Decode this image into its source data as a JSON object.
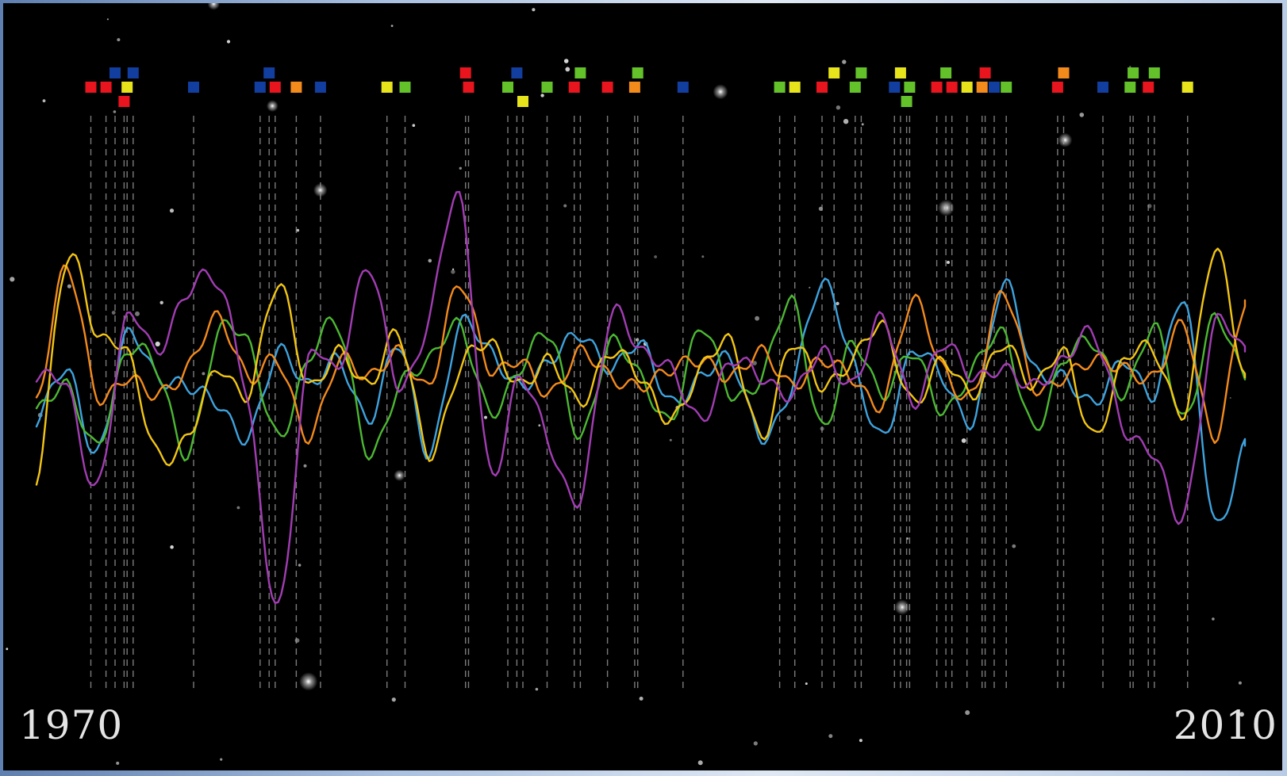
{
  "chart_data": {
    "type": "line",
    "x_start_label": "1970",
    "x_end_label": "2010",
    "xlim": [
      1970,
      2010
    ],
    "ylim": [
      -1,
      1
    ],
    "grid": false,
    "legend": "none",
    "background": "#000000",
    "series": [
      {
        "color": "#3ea3de",
        "x": [
          1970.0,
          1971.0,
          1972.0,
          1973.0,
          1974.0,
          1975.0,
          1976.0,
          1977.0,
          1978.0,
          1979.0,
          1980.0,
          1981.0,
          1982.0,
          1983.0,
          1984.0,
          1985.0,
          1986.0,
          1987.0,
          1988.0,
          1989.0,
          1990.0,
          1991.0,
          1992.0,
          1993.0,
          1994.0,
          1995.0,
          1996.0,
          1997.0,
          1998.0,
          1999.0,
          2000.0,
          2001.0,
          2002.0,
          2003.0,
          2004.0,
          2005.0,
          2006.0,
          2007.0,
          2008.0,
          2009.0,
          2010.0
        ],
        "y": [
          -0.25,
          0.05,
          -0.45,
          0.25,
          0.0,
          -0.05,
          -0.15,
          -0.35,
          0.15,
          -0.05,
          0.1,
          -0.25,
          0.2,
          -0.45,
          0.3,
          0.15,
          -0.05,
          0.1,
          0.25,
          0.05,
          0.2,
          -0.15,
          0.0,
          0.1,
          -0.35,
          -0.05,
          0.55,
          0.1,
          -0.35,
          0.15,
          0.0,
          -0.25,
          0.55,
          0.05,
          0.0,
          -0.15,
          0.1,
          -0.1,
          0.45,
          -0.85,
          -0.4
        ]
      },
      {
        "color": "#4cb832",
        "x": [
          1970.0,
          1971.0,
          1972.0,
          1973.0,
          1974.0,
          1975.0,
          1976.0,
          1977.0,
          1978.0,
          1979.0,
          1980.0,
          1981.0,
          1982.0,
          1983.0,
          1984.0,
          1985.0,
          1986.0,
          1987.0,
          1988.0,
          1989.0,
          1990.0,
          1991.0,
          1992.0,
          1993.0,
          1994.0,
          1995.0,
          1996.0,
          1997.0,
          1998.0,
          1999.0,
          2000.0,
          2001.0,
          2002.0,
          2003.0,
          2004.0,
          2005.0,
          2006.0,
          2007.0,
          2008.0,
          2009.0,
          2010.0
        ],
        "y": [
          -0.2,
          -0.05,
          -0.4,
          0.15,
          0.05,
          -0.45,
          0.25,
          0.2,
          -0.35,
          0.1,
          0.3,
          -0.45,
          -0.05,
          0.1,
          0.3,
          -0.2,
          0.05,
          0.25,
          -0.35,
          0.2,
          0.0,
          -0.25,
          0.3,
          -0.1,
          0.0,
          0.45,
          -0.3,
          0.2,
          -0.1,
          0.15,
          -0.2,
          0.05,
          0.25,
          -0.3,
          0.1,
          0.2,
          -0.1,
          0.3,
          -0.25,
          0.35,
          0.0
        ]
      },
      {
        "color": "#f38a1c",
        "x": [
          1970.0,
          1971.0,
          1972.0,
          1973.0,
          1974.0,
          1975.0,
          1976.0,
          1977.0,
          1978.0,
          1979.0,
          1980.0,
          1981.0,
          1982.0,
          1983.0,
          1984.0,
          1985.0,
          1986.0,
          1987.0,
          1988.0,
          1989.0,
          1990.0,
          1991.0,
          1992.0,
          1993.0,
          1994.0,
          1995.0,
          1996.0,
          1997.0,
          1998.0,
          1999.0,
          2000.0,
          2001.0,
          2002.0,
          2003.0,
          2004.0,
          2005.0,
          2006.0,
          2007.0,
          2008.0,
          2009.0,
          2010.0
        ],
        "y": [
          -0.15,
          0.65,
          -0.1,
          0.0,
          -0.1,
          0.05,
          0.35,
          0.0,
          0.1,
          -0.35,
          0.1,
          0.0,
          0.15,
          -0.05,
          0.55,
          0.05,
          0.1,
          -0.1,
          0.15,
          0.0,
          -0.05,
          0.05,
          0.1,
          0.0,
          0.15,
          -0.05,
          0.1,
          0.0,
          -0.15,
          0.45,
          0.05,
          -0.1,
          0.5,
          -0.05,
          0.0,
          0.1,
          0.05,
          0.0,
          0.3,
          -0.35,
          0.45
        ]
      },
      {
        "color": "#f2c515",
        "x": [
          1970.0,
          1971.0,
          1972.0,
          1973.0,
          1974.0,
          1975.0,
          1976.0,
          1977.0,
          1978.0,
          1979.0,
          1980.0,
          1981.0,
          1982.0,
          1983.0,
          1984.0,
          1985.0,
          1986.0,
          1987.0,
          1988.0,
          1989.0,
          1990.0,
          1991.0,
          1992.0,
          1993.0,
          1994.0,
          1995.0,
          1996.0,
          1997.0,
          1998.0,
          1999.0,
          2000.0,
          2001.0,
          2002.0,
          2003.0,
          2004.0,
          2005.0,
          2006.0,
          2007.0,
          2008.0,
          2009.0,
          2010.0
        ],
        "y": [
          -0.6,
          0.7,
          0.25,
          0.15,
          -0.45,
          -0.35,
          0.05,
          -0.1,
          0.55,
          -0.05,
          0.15,
          -0.05,
          0.25,
          -0.45,
          0.05,
          0.2,
          -0.05,
          0.1,
          -0.15,
          0.15,
          0.0,
          -0.25,
          0.05,
          0.2,
          -0.35,
          0.2,
          -0.05,
          0.1,
          0.3,
          -0.15,
          0.1,
          -0.1,
          0.2,
          -0.05,
          0.15,
          -0.35,
          0.1,
          0.15,
          -0.2,
          0.75,
          0.0
        ]
      },
      {
        "color": "#a23db3",
        "x": [
          1970.0,
          1971.0,
          1972.0,
          1973.0,
          1974.0,
          1975.0,
          1976.0,
          1977.0,
          1978.0,
          1979.0,
          1980.0,
          1981.0,
          1982.0,
          1983.0,
          1984.0,
          1985.0,
          1986.0,
          1987.0,
          1988.0,
          1989.0,
          1990.0,
          1991.0,
          1992.0,
          1993.0,
          1994.0,
          1995.0,
          1996.0,
          1997.0,
          1998.0,
          1999.0,
          2000.0,
          2001.0,
          2002.0,
          2003.0,
          2004.0,
          2005.0,
          2006.0,
          2007.0,
          2008.0,
          2009.0,
          2010.0
        ],
        "y": [
          0.0,
          -0.05,
          -0.65,
          0.35,
          0.15,
          0.5,
          0.55,
          -0.15,
          -1.35,
          0.1,
          0.05,
          0.65,
          -0.05,
          0.35,
          1.05,
          -0.55,
          0.0,
          -0.4,
          -0.7,
          0.35,
          0.15,
          0.05,
          -0.25,
          0.1,
          0.0,
          -0.1,
          0.15,
          -0.05,
          0.35,
          -0.15,
          0.2,
          0.0,
          0.05,
          -0.05,
          0.1,
          0.25,
          -0.3,
          -0.45,
          -0.8,
          0.3,
          0.15
        ]
      }
    ],
    "event_markers": [
      {
        "x": 1971.8,
        "row": 1,
        "color": "#e8141e"
      },
      {
        "x": 1972.3,
        "row": 1,
        "color": "#e8141e"
      },
      {
        "x": 1972.6,
        "row": 0,
        "color": "#123ea0"
      },
      {
        "x": 1972.9,
        "row": 2,
        "color": "#e8141e"
      },
      {
        "x": 1973.0,
        "row": 1,
        "color": "#e8e41c"
      },
      {
        "x": 1973.2,
        "row": 0,
        "color": "#123ea0"
      },
      {
        "x": 1975.2,
        "row": 1,
        "color": "#123ea0"
      },
      {
        "x": 1977.4,
        "row": 1,
        "color": "#123ea0"
      },
      {
        "x": 1977.7,
        "row": 0,
        "color": "#123ea0"
      },
      {
        "x": 1977.9,
        "row": 1,
        "color": "#e8141e"
      },
      {
        "x": 1978.6,
        "row": 1,
        "color": "#f38a1c"
      },
      {
        "x": 1979.4,
        "row": 1,
        "color": "#123ea0"
      },
      {
        "x": 1981.6,
        "row": 1,
        "color": "#e8e41c"
      },
      {
        "x": 1982.2,
        "row": 1,
        "color": "#63c22a"
      },
      {
        "x": 1984.2,
        "row": 0,
        "color": "#e8141e"
      },
      {
        "x": 1984.3,
        "row": 1,
        "color": "#e8141e"
      },
      {
        "x": 1985.6,
        "row": 1,
        "color": "#63c22a"
      },
      {
        "x": 1985.9,
        "row": 0,
        "color": "#123ea0"
      },
      {
        "x": 1986.1,
        "row": 2,
        "color": "#e8e41c"
      },
      {
        "x": 1986.9,
        "row": 1,
        "color": "#63c22a"
      },
      {
        "x": 1987.8,
        "row": 1,
        "color": "#e8141e"
      },
      {
        "x": 1988.0,
        "row": 0,
        "color": "#63c22a"
      },
      {
        "x": 1988.9,
        "row": 1,
        "color": "#e8141e"
      },
      {
        "x": 1989.8,
        "row": 1,
        "color": "#f38a1c"
      },
      {
        "x": 1989.9,
        "row": 0,
        "color": "#63c22a"
      },
      {
        "x": 1991.4,
        "row": 1,
        "color": "#123ea0"
      },
      {
        "x": 1994.6,
        "row": 1,
        "color": "#63c22a"
      },
      {
        "x": 1995.1,
        "row": 1,
        "color": "#e8e41c"
      },
      {
        "x": 1996.0,
        "row": 1,
        "color": "#e8141e"
      },
      {
        "x": 1996.4,
        "row": 0,
        "color": "#e8e41c"
      },
      {
        "x": 1997.1,
        "row": 1,
        "color": "#63c22a"
      },
      {
        "x": 1997.3,
        "row": 0,
        "color": "#63c22a"
      },
      {
        "x": 1998.4,
        "row": 1,
        "color": "#123ea0"
      },
      {
        "x": 1998.6,
        "row": 0,
        "color": "#e8e41c"
      },
      {
        "x": 1998.8,
        "row": 2,
        "color": "#63c22a"
      },
      {
        "x": 1998.9,
        "row": 1,
        "color": "#63c22a"
      },
      {
        "x": 1999.8,
        "row": 1,
        "color": "#e8141e"
      },
      {
        "x": 2000.1,
        "row": 0,
        "color": "#63c22a"
      },
      {
        "x": 2000.3,
        "row": 1,
        "color": "#e8141e"
      },
      {
        "x": 2000.8,
        "row": 1,
        "color": "#e8e41c"
      },
      {
        "x": 2001.3,
        "row": 1,
        "color": "#f38a1c"
      },
      {
        "x": 2001.4,
        "row": 0,
        "color": "#e8141e"
      },
      {
        "x": 2001.7,
        "row": 1,
        "color": "#123ea0"
      },
      {
        "x": 2002.1,
        "row": 1,
        "color": "#63c22a"
      },
      {
        "x": 2003.8,
        "row": 1,
        "color": "#e8141e"
      },
      {
        "x": 2004.0,
        "row": 0,
        "color": "#f38a1c"
      },
      {
        "x": 2005.3,
        "row": 1,
        "color": "#123ea0"
      },
      {
        "x": 2006.2,
        "row": 1,
        "color": "#63c22a"
      },
      {
        "x": 2006.3,
        "row": 0,
        "color": "#63c22a"
      },
      {
        "x": 2006.8,
        "row": 1,
        "color": "#e8141e"
      },
      {
        "x": 2007.0,
        "row": 0,
        "color": "#63c22a"
      },
      {
        "x": 2008.1,
        "row": 1,
        "color": "#e8e41c"
      }
    ]
  }
}
